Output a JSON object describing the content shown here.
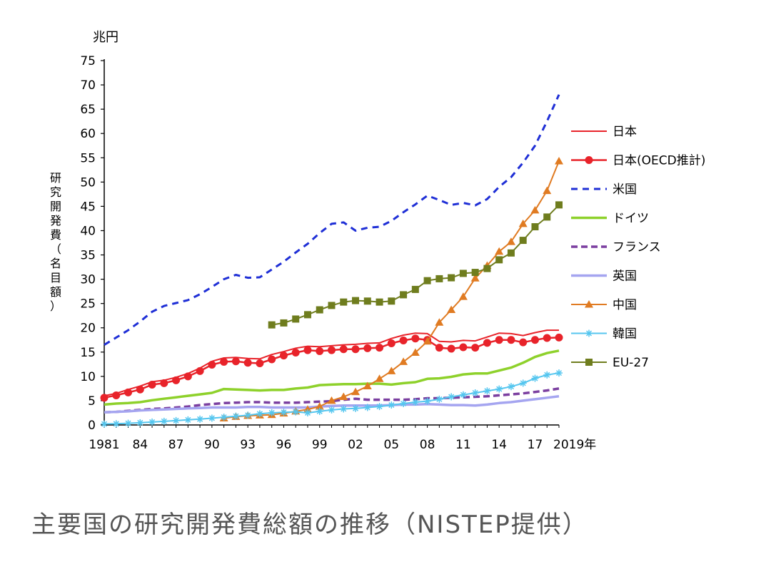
{
  "caption": "主要国の研究開発費総額の推移（NISTEP提供）",
  "chart_data": {
    "type": "line",
    "yunit": "兆円",
    "ylabel_chars": [
      "研",
      "究",
      "開",
      "発",
      "費",
      "（",
      "名",
      "目",
      "額",
      "）"
    ],
    "ylim": [
      0,
      75
    ],
    "yticks": [
      0,
      5,
      10,
      15,
      20,
      25,
      30,
      35,
      40,
      45,
      50,
      55,
      60,
      65,
      70,
      75
    ],
    "xlim": [
      1981,
      2019
    ],
    "xticks": [
      {
        "x": 1981,
        "label": "1981"
      },
      {
        "x": 1984,
        "label": "84"
      },
      {
        "x": 1987,
        "label": "87"
      },
      {
        "x": 1990,
        "label": "90"
      },
      {
        "x": 1993,
        "label": "93"
      },
      {
        "x": 1996,
        "label": "96"
      },
      {
        "x": 1999,
        "label": "99"
      },
      {
        "x": 2002,
        "label": "02"
      },
      {
        "x": 2005,
        "label": "05"
      },
      {
        "x": 2008,
        "label": "08"
      },
      {
        "x": 2011,
        "label": "11"
      },
      {
        "x": 2014,
        "label": "14"
      },
      {
        "x": 2017,
        "label": "17"
      },
      {
        "x": 2019,
        "label": "2019年"
      }
    ],
    "legend_position": "right",
    "series": [
      {
        "key": "japan",
        "name": "日本",
        "color": "#e8232a",
        "dash": "none",
        "width": 2,
        "marker": "none",
        "x": [
          1981,
          1982,
          1983,
          1984,
          1985,
          1986,
          1987,
          1988,
          1989,
          1990,
          1991,
          1992,
          1993,
          1994,
          1995,
          1996,
          1997,
          1998,
          1999,
          2000,
          2001,
          2002,
          2003,
          2004,
          2005,
          2006,
          2007,
          2008,
          2009,
          2010,
          2011,
          2012,
          2013,
          2014,
          2015,
          2016,
          2017,
          2018,
          2019
        ],
        "y": [
          6.0,
          6.5,
          7.3,
          8.0,
          8.9,
          9.2,
          9.8,
          10.6,
          11.7,
          13.1,
          13.8,
          13.9,
          13.7,
          13.6,
          14.5,
          15.1,
          15.8,
          16.2,
          16.1,
          16.3,
          16.5,
          16.6,
          16.8,
          16.9,
          17.8,
          18.5,
          18.9,
          18.8,
          17.2,
          17.1,
          17.4,
          17.3,
          18.1,
          18.9,
          18.8,
          18.4,
          19.0,
          19.5,
          19.5
        ]
      },
      {
        "key": "japan_oecd",
        "name": "日本(OECD推計)",
        "color": "#e8232a",
        "dash": "none",
        "width": 2.5,
        "marker": "circle",
        "x": [
          1981,
          1982,
          1983,
          1984,
          1985,
          1986,
          1987,
          1988,
          1989,
          1990,
          1991,
          1992,
          1993,
          1994,
          1995,
          1996,
          1997,
          1998,
          1999,
          2000,
          2001,
          2002,
          2003,
          2004,
          2005,
          2006,
          2007,
          2008,
          2009,
          2010,
          2011,
          2012,
          2013,
          2014,
          2015,
          2016,
          2017,
          2018,
          2019
        ],
        "y": [
          5.6,
          6.1,
          6.7,
          7.3,
          8.3,
          8.6,
          9.2,
          10.0,
          11.1,
          12.4,
          13.0,
          13.1,
          12.8,
          12.7,
          13.5,
          14.3,
          14.9,
          15.4,
          15.2,
          15.4,
          15.6,
          15.6,
          15.8,
          15.9,
          16.8,
          17.4,
          17.8,
          17.5,
          15.9,
          15.7,
          16.0,
          15.9,
          16.9,
          17.5,
          17.5,
          17.0,
          17.5,
          17.9,
          18.0
        ]
      },
      {
        "key": "usa",
        "name": "米国",
        "color": "#1f2fd6",
        "dash": "9,7",
        "width": 3,
        "marker": "none",
        "x": [
          1981,
          1982,
          1983,
          1984,
          1985,
          1986,
          1987,
          1988,
          1989,
          1990,
          1991,
          1992,
          1993,
          1994,
          1995,
          1996,
          1997,
          1998,
          1999,
          2000,
          2001,
          2002,
          2003,
          2004,
          2005,
          2006,
          2007,
          2008,
          2009,
          2010,
          2011,
          2012,
          2013,
          2014,
          2015,
          2016,
          2017,
          2018,
          2019
        ],
        "y": [
          16.5,
          18.0,
          19.5,
          21.3,
          23.3,
          24.5,
          25.1,
          25.7,
          26.9,
          28.4,
          30.0,
          30.9,
          30.3,
          30.4,
          32.0,
          33.6,
          35.5,
          37.3,
          39.5,
          41.4,
          41.7,
          40.0,
          40.6,
          40.8,
          42.0,
          43.8,
          45.4,
          47.2,
          46.3,
          45.3,
          45.7,
          45.2,
          46.5,
          49.0,
          51.0,
          54.0,
          57.5,
          62.5,
          68.0
        ]
      },
      {
        "key": "germany",
        "name": "ドイツ",
        "color": "#8ed12b",
        "dash": "none",
        "width": 3.5,
        "marker": "none",
        "x": [
          1981,
          1982,
          1983,
          1984,
          1985,
          1986,
          1987,
          1988,
          1989,
          1990,
          1991,
          1992,
          1993,
          1994,
          1995,
          1996,
          1997,
          1998,
          1999,
          2000,
          2001,
          2002,
          2003,
          2004,
          2005,
          2006,
          2007,
          2008,
          2009,
          2010,
          2011,
          2012,
          2013,
          2014,
          2015,
          2016,
          2017,
          2018,
          2019
        ],
        "y": [
          4.2,
          4.4,
          4.5,
          4.7,
          5.1,
          5.4,
          5.7,
          6.0,
          6.3,
          6.6,
          7.4,
          7.3,
          7.2,
          7.1,
          7.2,
          7.2,
          7.5,
          7.7,
          8.2,
          8.3,
          8.4,
          8.4,
          8.5,
          8.5,
          8.3,
          8.6,
          8.8,
          9.5,
          9.6,
          9.9,
          10.4,
          10.6,
          10.6,
          11.2,
          11.8,
          12.8,
          14.0,
          14.8,
          15.3
        ]
      },
      {
        "key": "france",
        "name": "フランス",
        "color": "#7b3fa0",
        "dash": "9,5",
        "width": 3.5,
        "marker": "none",
        "x": [
          1981,
          1982,
          1983,
          1984,
          1985,
          1986,
          1987,
          1988,
          1989,
          1990,
          1991,
          1992,
          1993,
          1994,
          1995,
          1996,
          1997,
          1998,
          1999,
          2000,
          2001,
          2002,
          2003,
          2004,
          2005,
          2006,
          2007,
          2008,
          2009,
          2010,
          2011,
          2012,
          2013,
          2014,
          2015,
          2016,
          2017,
          2018,
          2019
        ],
        "y": [
          2.6,
          2.7,
          2.9,
          3.1,
          3.3,
          3.4,
          3.6,
          3.8,
          4.1,
          4.3,
          4.5,
          4.6,
          4.7,
          4.7,
          4.6,
          4.6,
          4.6,
          4.7,
          4.8,
          4.9,
          5.2,
          5.4,
          5.2,
          5.2,
          5.2,
          5.2,
          5.3,
          5.5,
          5.5,
          5.6,
          5.7,
          5.8,
          5.9,
          6.1,
          6.3,
          6.5,
          6.8,
          7.1,
          7.5
        ]
      },
      {
        "key": "uk",
        "name": "英国",
        "color": "#a5a5f0",
        "dash": "none",
        "width": 3.5,
        "marker": "none",
        "x": [
          1981,
          1982,
          1983,
          1984,
          1985,
          1986,
          1987,
          1988,
          1989,
          1990,
          1991,
          1992,
          1993,
          1994,
          1995,
          1996,
          1997,
          1998,
          1999,
          2000,
          2001,
          2002,
          2003,
          2004,
          2005,
          2006,
          2007,
          2008,
          2009,
          2010,
          2011,
          2012,
          2013,
          2014,
          2015,
          2016,
          2017,
          2018,
          2019
        ],
        "y": [
          2.6,
          2.7,
          2.8,
          3.0,
          3.1,
          3.2,
          3.3,
          3.4,
          3.5,
          3.6,
          3.6,
          3.6,
          3.7,
          3.7,
          3.6,
          3.6,
          3.6,
          3.6,
          3.8,
          3.9,
          4.0,
          4.0,
          4.0,
          4.0,
          4.1,
          4.2,
          4.2,
          4.3,
          4.2,
          4.1,
          4.1,
          4.0,
          4.2,
          4.5,
          4.7,
          5.0,
          5.3,
          5.6,
          5.9
        ]
      },
      {
        "key": "china",
        "name": "中国",
        "color": "#e07b22",
        "dash": "none",
        "width": 2,
        "marker": "triangle",
        "x": [
          1991,
          1992,
          1993,
          1994,
          1995,
          1996,
          1997,
          1998,
          1999,
          2000,
          2001,
          2002,
          2003,
          2004,
          2005,
          2006,
          2007,
          2008,
          2009,
          2010,
          2011,
          2012,
          2013,
          2014,
          2015,
          2016,
          2017,
          2018,
          2019
        ],
        "y": [
          1.4,
          1.7,
          1.9,
          2.0,
          2.1,
          2.4,
          2.8,
          3.2,
          3.8,
          5.0,
          5.8,
          6.8,
          8.0,
          9.5,
          11.1,
          13.0,
          14.9,
          17.2,
          21.1,
          23.7,
          26.4,
          30.2,
          32.8,
          35.7,
          37.7,
          41.4,
          44.2,
          48.2,
          54.3
        ]
      },
      {
        "key": "korea",
        "name": "韓国",
        "color": "#55c6ef",
        "dash": "none",
        "width": 2,
        "marker": "star",
        "x": [
          1981,
          1982,
          1983,
          1984,
          1985,
          1986,
          1987,
          1988,
          1989,
          1990,
          1991,
          1992,
          1993,
          1994,
          1995,
          1996,
          1997,
          1998,
          1999,
          2000,
          2001,
          2002,
          2003,
          2004,
          2005,
          2006,
          2007,
          2008,
          2009,
          2010,
          2011,
          2012,
          2013,
          2014,
          2015,
          2016,
          2017,
          2018,
          2019
        ],
        "y": [
          0.2,
          0.25,
          0.35,
          0.45,
          0.6,
          0.75,
          0.9,
          1.05,
          1.2,
          1.4,
          1.6,
          1.8,
          2.0,
          2.3,
          2.5,
          2.6,
          2.7,
          2.5,
          2.8,
          3.1,
          3.3,
          3.4,
          3.6,
          3.8,
          4.1,
          4.4,
          4.7,
          4.9,
          5.3,
          5.8,
          6.2,
          6.6,
          7.0,
          7.4,
          7.9,
          8.6,
          9.6,
          10.3,
          10.7
        ]
      },
      {
        "key": "eu27",
        "name": "EU-27",
        "color": "#6f7d1e",
        "dash": "none",
        "width": 2,
        "marker": "square",
        "x": [
          1995,
          1996,
          1997,
          1998,
          1999,
          2000,
          2001,
          2002,
          2003,
          2004,
          2005,
          2006,
          2007,
          2008,
          2009,
          2010,
          2011,
          2012,
          2013,
          2014,
          2015,
          2016,
          2017,
          2018,
          2019
        ],
        "y": [
          20.6,
          21.0,
          21.8,
          22.7,
          23.7,
          24.6,
          25.3,
          25.6,
          25.5,
          25.3,
          25.5,
          26.8,
          27.9,
          29.7,
          30.1,
          30.3,
          31.2,
          31.4,
          32.2,
          34.0,
          35.4,
          38.0,
          40.8,
          42.8,
          45.3
        ]
      }
    ]
  }
}
